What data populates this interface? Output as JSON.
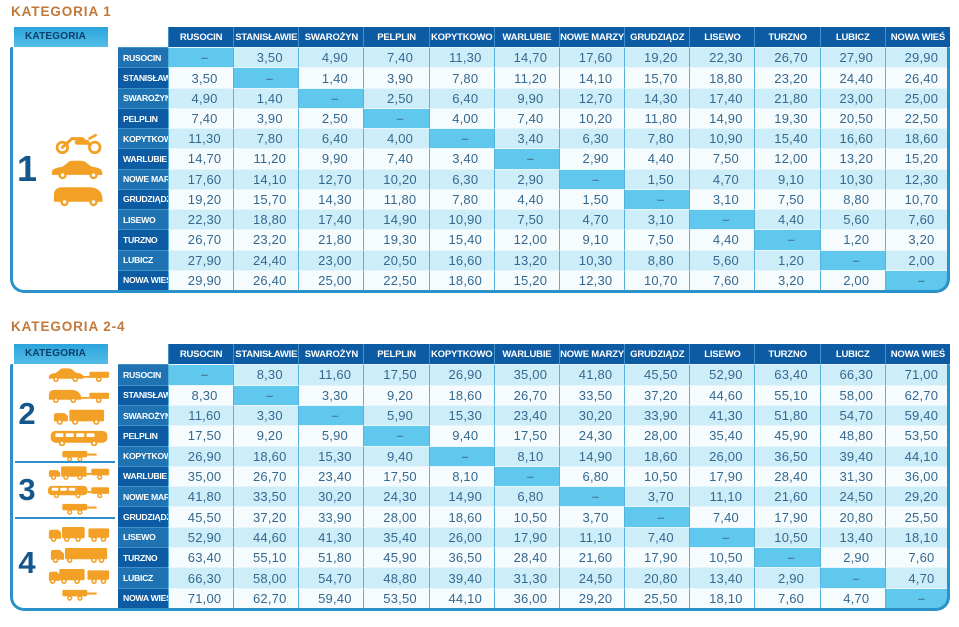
{
  "category_header_label": "KATEGORIA",
  "dash": "–",
  "colors": {
    "title_orange": "#c1793b",
    "header_blue": "#0d5ba2",
    "row_header_alt_blue": "#2073b2",
    "light_row": "#cdeef9",
    "white_row": "#f6fcfe",
    "diagonal_cell": "#60c8ec",
    "frame_border": "#2b91c9",
    "kategoria_band": "#3cb0e2",
    "vehicle_icon_orange": "#f3a126"
  },
  "stations": [
    "RUSOCIN",
    "STANISŁAWIE",
    "SWAROŻYN",
    "PELPLIN",
    "KOPYTKOWO",
    "WARLUBIE",
    "NOWE MARZY",
    "GRUDZIĄDZ",
    "LISEWO",
    "TURZNO",
    "LUBICZ",
    "NOWA WIEŚ"
  ],
  "tables": [
    {
      "title": "KATEGORIA 1",
      "categories": [
        {
          "label": "1",
          "icons": [
            "motorcycle-icon",
            "car-icon",
            "van-icon"
          ]
        }
      ],
      "matrix": [
        [
          "–",
          "3,50",
          "4,90",
          "7,40",
          "11,30",
          "14,70",
          "17,60",
          "19,20",
          "22,30",
          "26,70",
          "27,90",
          "29,90"
        ],
        [
          "3,50",
          "–",
          "1,40",
          "3,90",
          "7,80",
          "11,20",
          "14,10",
          "15,70",
          "18,80",
          "23,20",
          "24,40",
          "26,40"
        ],
        [
          "4,90",
          "1,40",
          "–",
          "2,50",
          "6,40",
          "9,90",
          "12,70",
          "14,30",
          "17,40",
          "21,80",
          "23,00",
          "25,00"
        ],
        [
          "7,40",
          "3,90",
          "2,50",
          "–",
          "4,00",
          "7,40",
          "10,20",
          "11,80",
          "14,90",
          "19,30",
          "20,50",
          "22,50"
        ],
        [
          "11,30",
          "7,80",
          "6,40",
          "4,00",
          "–",
          "3,40",
          "6,30",
          "7,80",
          "10,90",
          "15,40",
          "16,60",
          "18,60"
        ],
        [
          "14,70",
          "11,20",
          "9,90",
          "7,40",
          "3,40",
          "–",
          "2,90",
          "4,40",
          "7,50",
          "12,00",
          "13,20",
          "15,20"
        ],
        [
          "17,60",
          "14,10",
          "12,70",
          "10,20",
          "6,30",
          "2,90",
          "–",
          "1,50",
          "4,70",
          "9,10",
          "10,30",
          "12,30"
        ],
        [
          "19,20",
          "15,70",
          "14,30",
          "11,80",
          "7,80",
          "4,40",
          "1,50",
          "–",
          "3,10",
          "7,50",
          "8,80",
          "10,70"
        ],
        [
          "22,30",
          "18,80",
          "17,40",
          "14,90",
          "10,90",
          "7,50",
          "4,70",
          "3,10",
          "–",
          "4,40",
          "5,60",
          "7,60"
        ],
        [
          "26,70",
          "23,20",
          "21,80",
          "19,30",
          "15,40",
          "12,00",
          "9,10",
          "7,50",
          "4,40",
          "–",
          "1,20",
          "3,20"
        ],
        [
          "27,90",
          "24,40",
          "23,00",
          "20,50",
          "16,60",
          "13,20",
          "10,30",
          "8,80",
          "5,60",
          "1,20",
          "–",
          "2,00"
        ],
        [
          "29,90",
          "26,40",
          "25,00",
          "22,50",
          "18,60",
          "15,20",
          "12,30",
          "10,70",
          "7,60",
          "3,20",
          "2,00",
          "–"
        ]
      ]
    },
    {
      "title": "KATEGORIA 2-4",
      "categories": [
        {
          "label": "2",
          "icons": [
            "car-trailer-icon",
            "van-trailer-icon",
            "box-truck-icon",
            "bus-icon",
            "trailer-icon"
          ]
        },
        {
          "label": "3",
          "icons": [
            "truck-trailer-icon",
            "bus-trailer-icon",
            "trailer-icon"
          ]
        },
        {
          "label": "4",
          "icons": [
            "truck-box-trailer-icon",
            "semi-truck-icon",
            "road-train-icon",
            "trailer-icon"
          ]
        }
      ],
      "matrix": [
        [
          "–",
          "8,30",
          "11,60",
          "17,50",
          "26,90",
          "35,00",
          "41,80",
          "45,50",
          "52,90",
          "63,40",
          "66,30",
          "71,00"
        ],
        [
          "8,30",
          "–",
          "3,30",
          "9,20",
          "18,60",
          "26,70",
          "33,50",
          "37,20",
          "44,60",
          "55,10",
          "58,00",
          "62,70"
        ],
        [
          "11,60",
          "3,30",
          "–",
          "5,90",
          "15,30",
          "23,40",
          "30,20",
          "33,90",
          "41,30",
          "51,80",
          "54,70",
          "59,40"
        ],
        [
          "17,50",
          "9,20",
          "5,90",
          "–",
          "9,40",
          "17,50",
          "24,30",
          "28,00",
          "35,40",
          "45,90",
          "48,80",
          "53,50"
        ],
        [
          "26,90",
          "18,60",
          "15,30",
          "9,40",
          "–",
          "8,10",
          "14,90",
          "18,60",
          "26,00",
          "36,50",
          "39,40",
          "44,10"
        ],
        [
          "35,00",
          "26,70",
          "23,40",
          "17,50",
          "8,10",
          "–",
          "6,80",
          "10,50",
          "17,90",
          "28,40",
          "31,30",
          "36,00"
        ],
        [
          "41,80",
          "33,50",
          "30,20",
          "24,30",
          "14,90",
          "6,80",
          "–",
          "3,70",
          "11,10",
          "21,60",
          "24,50",
          "29,20"
        ],
        [
          "45,50",
          "37,20",
          "33,90",
          "28,00",
          "18,60",
          "10,50",
          "3,70",
          "–",
          "7,40",
          "17,90",
          "20,80",
          "25,50"
        ],
        [
          "52,90",
          "44,60",
          "41,30",
          "35,40",
          "26,00",
          "17,90",
          "11,10",
          "7,40",
          "–",
          "10,50",
          "13,40",
          "18,10"
        ],
        [
          "63,40",
          "55,10",
          "51,80",
          "45,90",
          "36,50",
          "28,40",
          "21,60",
          "17,90",
          "10,50",
          "–",
          "2,90",
          "7,60"
        ],
        [
          "66,30",
          "58,00",
          "54,70",
          "48,80",
          "39,40",
          "31,30",
          "24,50",
          "20,80",
          "13,40",
          "2,90",
          "–",
          "4,70"
        ],
        [
          "71,00",
          "62,70",
          "59,40",
          "53,50",
          "44,10",
          "36,00",
          "29,20",
          "25,50",
          "18,10",
          "7,60",
          "4,70",
          "–"
        ]
      ]
    }
  ]
}
